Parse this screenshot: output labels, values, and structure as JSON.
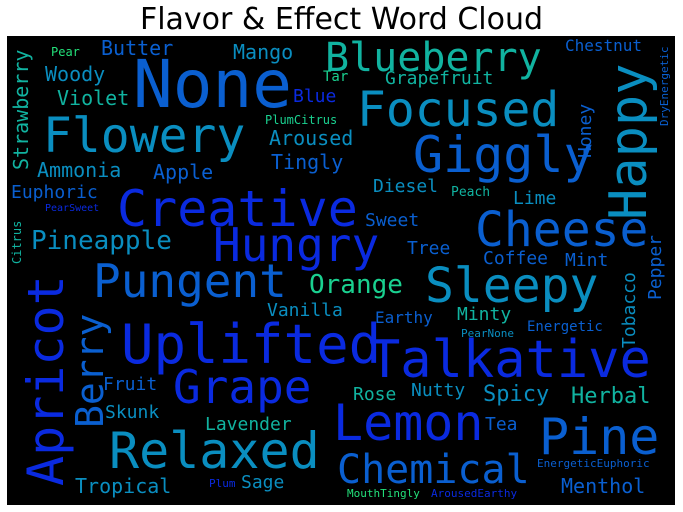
{
  "title": "Flavor & Effect Word Cloud",
  "words": {
    "none": "None",
    "focused": "Focused",
    "flowery": "Flowery",
    "giggly": "Giggly",
    "happy": "Happy",
    "creative": "Creative",
    "hungry": "Hungry",
    "cheese": "Cheese",
    "sleepy": "Sleepy",
    "pungent": "Pungent",
    "uplifted": "Uplifted",
    "talkative": "Talkative",
    "grape": "Grape",
    "apricot": "Apricot",
    "lemon": "Lemon",
    "relaxed": "Relaxed",
    "pine": "Pine",
    "chemical": "Chemical",
    "blueberry": "Blueberry",
    "berry": "Berry",
    "pineapple": "Pineapple",
    "orange": "Orange",
    "butter": "Butter",
    "mango": "Mango",
    "chestnut": "Chestnut",
    "pear": "Pear",
    "woody": "Woody",
    "tar": "Tar",
    "grapefruit": "Grapefruit",
    "violet": "Violet",
    "blue": "Blue",
    "plumcitrus": "PlumCitrus",
    "strawberry": "Strawberry",
    "aroused": "Aroused",
    "honey": "Honey",
    "ammonia": "Ammonia",
    "apple": "Apple",
    "tingly": "Tingly",
    "euphoric": "Euphoric",
    "diesel": "Diesel",
    "peach": "Peach",
    "lime": "Lime",
    "pearsweet": "PearSweet",
    "sweet": "Sweet",
    "citrus": "Citrus",
    "tree": "Tree",
    "coffee": "Coffee",
    "mint": "Mint",
    "pepper": "Pepper",
    "tobacco": "Tobacco",
    "vanilla": "Vanilla",
    "minty": "Minty",
    "earthy": "Earthy",
    "pearnone": "PearNone",
    "energetic": "Energetic",
    "dryenergetic": "DryEnergetic",
    "fruit": "Fruit",
    "rose": "Rose",
    "nutty": "Nutty",
    "spicy": "Spicy",
    "herbal": "Herbal",
    "skunk": "Skunk",
    "lavender": "Lavender",
    "tea": "Tea",
    "energeticeuphoric": "EnergeticEuphoric",
    "tropical": "Tropical",
    "plum": "Plum",
    "sage": "Sage",
    "mouthtingly": "MouthTingly",
    "arousedearthy": "ArousedEarthy",
    "menthol": "Menthol"
  },
  "colors": {
    "background": "#000000",
    "palette": [
      "#0a2ae0",
      "#0a5fd0",
      "#0a8ec0",
      "#11b3a0",
      "#1ad190",
      "#23e07a"
    ]
  }
}
